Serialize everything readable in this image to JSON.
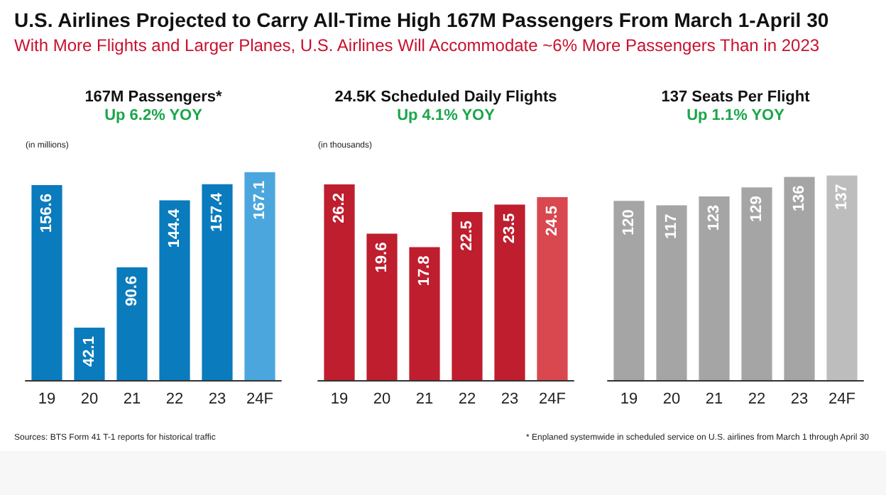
{
  "chart_data": [
    {
      "type": "other",
      "title": "U.S. Airlines Projected to Carry All-Time High 167M Passengers From March 1-April 30",
      "subtitle": "With More Flights and Larger Planes, U.S. Airlines Will Accommodate ~6% More Passengers Than in 2023",
      "annotations": [
        "Sources: BTS Form 41 T-1 reports for historical traffic",
        "* Enplaned systemwide in scheduled service on U.S. airlines from March 1 through April 30"
      ]
    },
    {
      "type": "bar",
      "title": "167M Passengers*",
      "subtitle": "Up 6.2% YOY",
      "annotations": [
        "(in millions)"
      ],
      "categories": [
        "19",
        "20",
        "21",
        "22",
        "23",
        "24F"
      ],
      "values": [
        156.6,
        42.1,
        90.6,
        144.4,
        157.4,
        167.1
      ],
      "colors": [
        "#0a7bbd",
        "#0a7bbd",
        "#0a7bbd",
        "#0a7bbd",
        "#0a7bbd",
        "#4aa6dd"
      ],
      "data_labels": true
    },
    {
      "type": "bar",
      "title": "24.5K Scheduled Daily Flights",
      "subtitle": "Up 4.1% YOY",
      "annotations": [
        "(in thousands)"
      ],
      "categories": [
        "19",
        "20",
        "21",
        "22",
        "23",
        "24F"
      ],
      "values": [
        26.2,
        19.6,
        17.8,
        22.5,
        23.5,
        24.5
      ],
      "colors": [
        "#be1e2d",
        "#be1e2d",
        "#be1e2d",
        "#be1e2d",
        "#be1e2d",
        "#d9474f"
      ],
      "data_labels": true
    },
    {
      "type": "bar",
      "title": "137 Seats Per Flight",
      "subtitle": "Up 1.1% YOY",
      "categories": [
        "19",
        "20",
        "21",
        "22",
        "23",
        "24F"
      ],
      "values": [
        120,
        117,
        123,
        129,
        136,
        137
      ],
      "colors": [
        "#a5a5a5",
        "#a5a5a5",
        "#a5a5a5",
        "#a5a5a5",
        "#a5a5a5",
        "#bdbdbd"
      ],
      "data_labels": true
    }
  ]
}
